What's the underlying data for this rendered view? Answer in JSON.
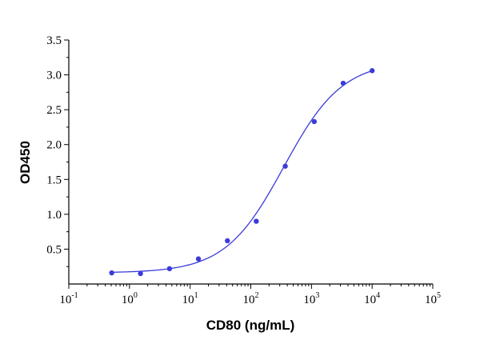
{
  "chart_data": {
    "type": "scatter",
    "title": "",
    "xlabel": "CD80 (ng/mL)",
    "ylabel": "OD450",
    "x_scale": "log",
    "xlim": [
      0.1,
      100000
    ],
    "ylim": [
      0,
      3.5
    ],
    "x_ticks": [
      {
        "base": "10",
        "exp": "-1",
        "value": 0.1
      },
      {
        "base": "10",
        "exp": "0",
        "value": 1
      },
      {
        "base": "10",
        "exp": "1",
        "value": 10
      },
      {
        "base": "10",
        "exp": "2",
        "value": 100
      },
      {
        "base": "10",
        "exp": "3",
        "value": 1000
      },
      {
        "base": "10",
        "exp": "4",
        "value": 10000
      },
      {
        "base": "10",
        "exp": "5",
        "value": 100000
      }
    ],
    "y_ticks": [
      {
        "label": "0.5",
        "value": 0.5
      },
      {
        "label": "1.0",
        "value": 1.0
      },
      {
        "label": "1.5",
        "value": 1.5
      },
      {
        "label": "2.0",
        "value": 2.0
      },
      {
        "label": "2.5",
        "value": 2.5
      },
      {
        "label": "3.0",
        "value": 3.0
      },
      {
        "label": "3.5",
        "value": 3.5
      }
    ],
    "grid": false,
    "legend": "none",
    "series": [
      {
        "color": "#3b3bd9",
        "points": [
          {
            "x": 0.51,
            "y": 0.16
          },
          {
            "x": 1.52,
            "y": 0.15
          },
          {
            "x": 4.57,
            "y": 0.22
          },
          {
            "x": 13.7,
            "y": 0.36
          },
          {
            "x": 41.2,
            "y": 0.62
          },
          {
            "x": 123,
            "y": 0.9
          },
          {
            "x": 370,
            "y": 1.69
          },
          {
            "x": 1111,
            "y": 2.33
          },
          {
            "x": 3333,
            "y": 2.88
          },
          {
            "x": 10000,
            "y": 3.06
          }
        ],
        "fit": {
          "model": "4PL",
          "bottom": 0.16,
          "top": 3.2,
          "ec50": 350,
          "hill": 0.9
        }
      }
    ]
  }
}
